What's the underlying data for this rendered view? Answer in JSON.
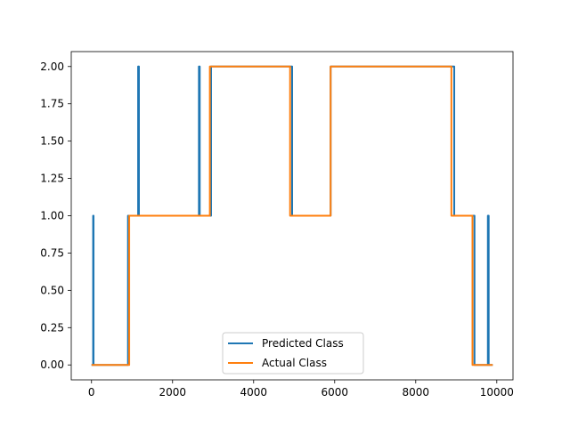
{
  "chart_data": {
    "type": "line",
    "title": "",
    "xlabel": "",
    "ylabel": "",
    "xlim": [
      -500,
      10400
    ],
    "ylim": [
      -0.1,
      2.1
    ],
    "x_ticks": [
      0,
      2000,
      4000,
      6000,
      8000,
      10000
    ],
    "x_tick_labels": [
      "0",
      "2000",
      "4000",
      "6000",
      "8000",
      "10000"
    ],
    "y_ticks": [
      0.0,
      0.25,
      0.5,
      0.75,
      1.0,
      1.25,
      1.5,
      1.75,
      2.0
    ],
    "y_tick_labels": [
      "0.00",
      "0.25",
      "0.50",
      "0.75",
      "1.00",
      "1.25",
      "1.50",
      "1.75",
      "2.00"
    ],
    "grid": false,
    "legend_position": "lower center",
    "series": [
      {
        "name": "Predicted Class",
        "color": "#1f77b4",
        "x": [
          0,
          40,
          40,
          50,
          50,
          900,
          900,
          1150,
          1150,
          1170,
          1170,
          2650,
          2650,
          2670,
          2670,
          2950,
          2950,
          4950,
          4950,
          5900,
          5900,
          8950,
          8950,
          9450,
          9450,
          9550,
          9550,
          9780,
          9780,
          9800,
          9800,
          9900
        ],
        "y": [
          0,
          0,
          1,
          1,
          0,
          0,
          1,
          1,
          2,
          2,
          1,
          1,
          2,
          2,
          1,
          1,
          2,
          2,
          1,
          1,
          2,
          2,
          1,
          1,
          0,
          0,
          0,
          0,
          1,
          1,
          0,
          0
        ]
      },
      {
        "name": "Actual Class",
        "color": "#ff7f0e",
        "x": [
          0,
          930,
          930,
          2920,
          2920,
          4900,
          4900,
          5900,
          5900,
          8880,
          8880,
          9400,
          9400,
          9900
        ],
        "y": [
          0,
          0,
          1,
          1,
          2,
          2,
          1,
          1,
          2,
          2,
          1,
          1,
          0,
          0
        ]
      }
    ]
  }
}
